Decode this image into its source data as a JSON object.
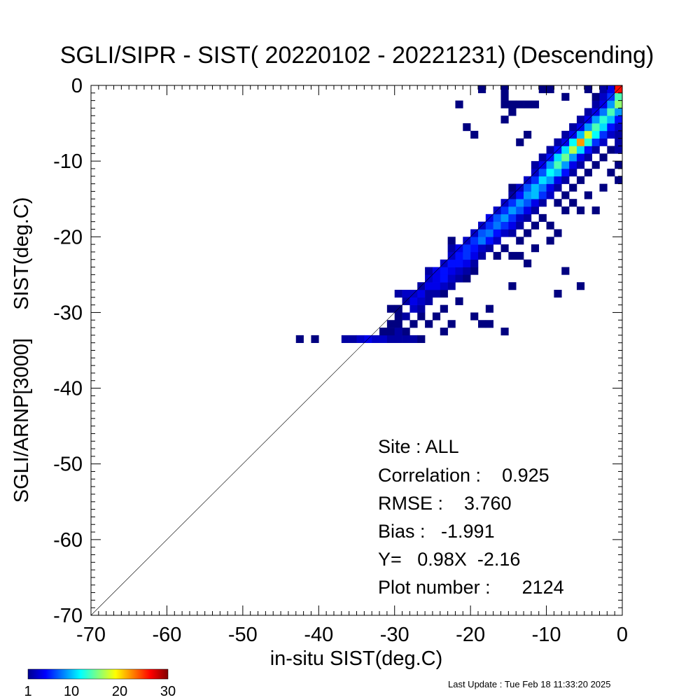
{
  "chart_data": {
    "type": "heatmap",
    "title": "SGLI/SIPR - SIST( 20220102 - 20221231) (Descending)",
    "xlabel": "in-situ SIST(deg.C)",
    "ylabel": "SGLI/ARNP[3000]     SIST(deg.C)",
    "xlim": [
      -70,
      0
    ],
    "ylim": [
      -70,
      0
    ],
    "x_ticks": [
      -70,
      -60,
      -50,
      -40,
      -30,
      -20,
      -10,
      0
    ],
    "y_ticks": [
      0,
      -10,
      -20,
      -30,
      -40,
      -50,
      -60,
      -70
    ],
    "bin_size": 1,
    "reference_line": "1:1",
    "grid": false,
    "colorbar": {
      "min": 1,
      "max": 30,
      "ticks": [
        1,
        10,
        20,
        30
      ],
      "colormap": "jet",
      "placement": "bottom-left"
    },
    "stats": {
      "site": "Site : ALL",
      "correlation": "Correlation :    0.925",
      "rmse": "RMSE :    3.760",
      "bias": "Bias :   -1.991",
      "regression": "Y=   0.98X  -2.16",
      "plot_number": "Plot number :      2124"
    },
    "cells": [
      [
        -43,
        -34,
        1
      ],
      [
        -41,
        -34,
        1
      ],
      [
        -37,
        -34,
        2
      ],
      [
        -36,
        -34,
        2
      ],
      [
        -35,
        -34,
        3
      ],
      [
        -34,
        -34,
        4
      ],
      [
        -33,
        -34,
        3
      ],
      [
        -32,
        -34,
        3
      ],
      [
        -31,
        -34,
        2
      ],
      [
        -30,
        -34,
        2
      ],
      [
        -29,
        -34,
        2
      ],
      [
        -28,
        -34,
        2
      ],
      [
        -27,
        -34,
        1
      ],
      [
        -32,
        -33,
        1
      ],
      [
        -31,
        -33,
        1
      ],
      [
        -30,
        -33,
        2
      ],
      [
        -29,
        -33,
        1
      ],
      [
        -24,
        -33,
        1
      ],
      [
        -16,
        -33,
        1
      ],
      [
        -31,
        -32,
        1
      ],
      [
        -30,
        -32,
        1
      ],
      [
        -28,
        -32,
        1
      ],
      [
        -26,
        -32,
        1
      ],
      [
        -23,
        -32,
        1
      ],
      [
        -19,
        -32,
        1
      ],
      [
        -18,
        -32,
        1
      ],
      [
        -30,
        -31,
        1
      ],
      [
        -29,
        -31,
        2
      ],
      [
        -27,
        -31,
        1
      ],
      [
        -25,
        -31,
        1
      ],
      [
        -20,
        -31,
        1
      ],
      [
        -31,
        -30,
        1
      ],
      [
        -30,
        -30,
        1
      ],
      [
        -28,
        -30,
        3
      ],
      [
        -27,
        -30,
        2
      ],
      [
        -24,
        -30,
        1
      ],
      [
        -18,
        -30,
        1
      ],
      [
        -29,
        -29,
        2
      ],
      [
        -28,
        -29,
        4
      ],
      [
        -27,
        -29,
        3
      ],
      [
        -26,
        -29,
        2
      ],
      [
        -22,
        -29,
        1
      ],
      [
        -30,
        -28,
        2
      ],
      [
        -29,
        -28,
        3
      ],
      [
        -28,
        -28,
        3
      ],
      [
        -27,
        -28,
        4
      ],
      [
        -26,
        -28,
        2
      ],
      [
        -25,
        -28,
        2
      ],
      [
        -24,
        -28,
        1
      ],
      [
        -9,
        -28,
        1
      ],
      [
        -27,
        -27,
        2
      ],
      [
        -26,
        -27,
        4
      ],
      [
        -25,
        -27,
        4
      ],
      [
        -24,
        -27,
        3
      ],
      [
        -23,
        -27,
        2
      ],
      [
        -15,
        -27,
        1
      ],
      [
        -6,
        -27,
        1
      ],
      [
        -26,
        -26,
        3
      ],
      [
        -25,
        -26,
        4
      ],
      [
        -24,
        -26,
        5
      ],
      [
        -23,
        -26,
        3
      ],
      [
        -22,
        -26,
        2
      ],
      [
        -21,
        -26,
        1
      ],
      [
        -26,
        -25,
        2
      ],
      [
        -25,
        -25,
        4
      ],
      [
        -24,
        -25,
        5
      ],
      [
        -23,
        -25,
        4
      ],
      [
        -22,
        -25,
        3
      ],
      [
        -21,
        -25,
        2
      ],
      [
        -20,
        -25,
        1
      ],
      [
        -8,
        -25,
        1
      ],
      [
        -24,
        -24,
        3
      ],
      [
        -23,
        -24,
        5
      ],
      [
        -22,
        -24,
        5
      ],
      [
        -21,
        -24,
        4
      ],
      [
        -20,
        -24,
        2
      ],
      [
        -13,
        -24,
        1
      ],
      [
        -23,
        -23,
        3
      ],
      [
        -22,
        -23,
        5
      ],
      [
        -21,
        -23,
        6
      ],
      [
        -20,
        -23,
        4
      ],
      [
        -19,
        -23,
        2
      ],
      [
        -17,
        -23,
        1
      ],
      [
        -15,
        -23,
        1
      ],
      [
        -14,
        -23,
        1
      ],
      [
        -23,
        -22,
        2
      ],
      [
        -22,
        -22,
        4
      ],
      [
        -21,
        -22,
        6
      ],
      [
        -20,
        -22,
        5
      ],
      [
        -19,
        -22,
        3
      ],
      [
        -18,
        -22,
        2
      ],
      [
        -16,
        -22,
        1
      ],
      [
        -12,
        -22,
        1
      ],
      [
        -23,
        -21,
        1
      ],
      [
        -21,
        -21,
        3
      ],
      [
        -20,
        -21,
        6
      ],
      [
        -19,
        -21,
        8
      ],
      [
        -18,
        -21,
        5
      ],
      [
        -17,
        -21,
        3
      ],
      [
        -14,
        -21,
        1
      ],
      [
        -10,
        -21,
        1
      ],
      [
        -20,
        -20,
        3
      ],
      [
        -19,
        -20,
        7
      ],
      [
        -18,
        -20,
        8
      ],
      [
        -17,
        -20,
        5
      ],
      [
        -16,
        -20,
        3
      ],
      [
        -15,
        -20,
        2
      ],
      [
        -13,
        -20,
        1
      ],
      [
        -9,
        -20,
        1
      ],
      [
        -19,
        -19,
        3
      ],
      [
        -18,
        -19,
        6
      ],
      [
        -17,
        -19,
        8
      ],
      [
        -16,
        -19,
        6
      ],
      [
        -15,
        -19,
        4
      ],
      [
        -14,
        -19,
        2
      ],
      [
        -12,
        -19,
        1
      ],
      [
        -10,
        -19,
        1
      ],
      [
        -18,
        -18,
        4
      ],
      [
        -17,
        -18,
        7
      ],
      [
        -16,
        -18,
        9
      ],
      [
        -15,
        -18,
        6
      ],
      [
        -14,
        -18,
        3
      ],
      [
        -13,
        -18,
        2
      ],
      [
        -11,
        -18,
        1
      ],
      [
        -17,
        -17,
        3
      ],
      [
        -16,
        -17,
        6
      ],
      [
        -15,
        -17,
        9
      ],
      [
        -14,
        -17,
        7
      ],
      [
        -13,
        -17,
        4
      ],
      [
        -12,
        -17,
        2
      ],
      [
        -8,
        -17,
        1
      ],
      [
        -6,
        -17,
        1
      ],
      [
        -4,
        -17,
        1
      ],
      [
        -16,
        -16,
        3
      ],
      [
        -15,
        -16,
        6
      ],
      [
        -14,
        -16,
        9
      ],
      [
        -13,
        -16,
        7
      ],
      [
        -12,
        -16,
        4
      ],
      [
        -11,
        -16,
        2
      ],
      [
        -9,
        -16,
        1
      ],
      [
        -7,
        -16,
        1
      ],
      [
        -15,
        -15,
        2
      ],
      [
        -14,
        -15,
        5
      ],
      [
        -13,
        -15,
        9
      ],
      [
        -12,
        -15,
        10
      ],
      [
        -11,
        -15,
        6
      ],
      [
        -10,
        -15,
        3
      ],
      [
        -8,
        -15,
        1
      ],
      [
        -5,
        -15,
        1
      ],
      [
        -15,
        -14,
        1
      ],
      [
        -14,
        -14,
        3
      ],
      [
        -13,
        -14,
        7
      ],
      [
        -12,
        -14,
        10
      ],
      [
        -11,
        -14,
        8
      ],
      [
        -10,
        -14,
        4
      ],
      [
        -9,
        -14,
        2
      ],
      [
        -7,
        -14,
        1
      ],
      [
        -3,
        -14,
        1
      ],
      [
        -13,
        -13,
        3
      ],
      [
        -12,
        -13,
        6
      ],
      [
        -11,
        -13,
        11
      ],
      [
        -10,
        -13,
        9
      ],
      [
        -9,
        -13,
        4
      ],
      [
        -8,
        -13,
        2
      ],
      [
        -6,
        -13,
        1
      ],
      [
        -1,
        -13,
        1
      ],
      [
        -12,
        -12,
        3
      ],
      [
        -11,
        -12,
        7
      ],
      [
        -10,
        -12,
        12
      ],
      [
        -9,
        -12,
        10
      ],
      [
        -8,
        -12,
        5
      ],
      [
        -7,
        -12,
        2
      ],
      [
        -5,
        -12,
        1
      ],
      [
        -2,
        -12,
        1
      ],
      [
        -12,
        -11,
        2
      ],
      [
        -11,
        -11,
        4
      ],
      [
        -10,
        -11,
        9
      ],
      [
        -9,
        -11,
        14
      ],
      [
        -8,
        -11,
        9
      ],
      [
        -7,
        -11,
        4
      ],
      [
        -6,
        -11,
        2
      ],
      [
        -4,
        -11,
        1
      ],
      [
        -1,
        -11,
        1
      ],
      [
        -11,
        -10,
        2
      ],
      [
        -10,
        -10,
        5
      ],
      [
        -9,
        -10,
        11
      ],
      [
        -8,
        -10,
        15
      ],
      [
        -7,
        -10,
        9
      ],
      [
        -6,
        -10,
        4
      ],
      [
        -5,
        -10,
        2
      ],
      [
        -3,
        -10,
        1
      ],
      [
        -10,
        -9,
        2
      ],
      [
        -9,
        -9,
        5
      ],
      [
        -8,
        -9,
        11
      ],
      [
        -7,
        -9,
        17
      ],
      [
        -6,
        -9,
        11
      ],
      [
        -5,
        -9,
        5
      ],
      [
        -4,
        -9,
        2
      ],
      [
        -2,
        -9,
        1
      ],
      [
        -1,
        -9,
        2
      ],
      [
        -9,
        -8,
        2
      ],
      [
        -8,
        -8,
        4
      ],
      [
        -7,
        -8,
        12
      ],
      [
        -6,
        -8,
        22
      ],
      [
        -5,
        -8,
        13
      ],
      [
        -4,
        -8,
        6
      ],
      [
        -3,
        -8,
        3
      ],
      [
        -1,
        -8,
        2
      ],
      [
        -8,
        -7,
        2
      ],
      [
        -7,
        -7,
        4
      ],
      [
        -6,
        -7,
        10
      ],
      [
        -5,
        -7,
        18
      ],
      [
        -4,
        -7,
        12
      ],
      [
        -3,
        -7,
        6
      ],
      [
        -2,
        -7,
        3
      ],
      [
        -1,
        -7,
        2
      ],
      [
        -7,
        -6,
        2
      ],
      [
        -6,
        -6,
        4
      ],
      [
        -5,
        -6,
        9
      ],
      [
        -4,
        -6,
        14
      ],
      [
        -3,
        -6,
        11
      ],
      [
        -2,
        -6,
        5
      ],
      [
        -1,
        -6,
        3
      ],
      [
        -6,
        -5,
        2
      ],
      [
        -5,
        -5,
        4
      ],
      [
        -4,
        -5,
        9
      ],
      [
        -3,
        -5,
        13
      ],
      [
        -2,
        -5,
        10
      ],
      [
        -1,
        -5,
        5
      ],
      [
        -5,
        -4,
        2
      ],
      [
        -4,
        -4,
        4
      ],
      [
        -3,
        -4,
        8
      ],
      [
        -2,
        -4,
        14
      ],
      [
        -1,
        -4,
        9
      ],
      [
        -4,
        -3,
        2
      ],
      [
        -3,
        -3,
        4
      ],
      [
        -2,
        -3,
        9
      ],
      [
        -1,
        -3,
        16
      ],
      [
        -4,
        -2,
        1
      ],
      [
        -3,
        -2,
        3
      ],
      [
        -2,
        -2,
        6
      ],
      [
        -1,
        -2,
        14
      ],
      [
        -3,
        -1,
        2
      ],
      [
        -2,
        -1,
        4
      ],
      [
        -1,
        -1,
        26
      ],
      [
        -19,
        -1,
        1
      ],
      [
        -16,
        -1,
        1
      ],
      [
        -11,
        -1,
        1
      ],
      [
        -10,
        -1,
        1
      ],
      [
        -5,
        -1,
        1
      ],
      [
        -16,
        -2,
        1
      ],
      [
        -8,
        -2,
        1
      ],
      [
        -22,
        -3,
        1
      ],
      [
        -16,
        -3,
        1
      ],
      [
        -15,
        -3,
        1
      ],
      [
        -14,
        -3,
        1
      ],
      [
        -13,
        -3,
        1
      ],
      [
        -12,
        -3,
        1
      ],
      [
        -15,
        -4,
        1
      ],
      [
        -16,
        -5,
        1
      ],
      [
        -21,
        -6,
        1
      ],
      [
        -13,
        -7,
        1
      ],
      [
        -20,
        -7,
        1
      ],
      [
        -14,
        -8,
        1
      ]
    ]
  },
  "footer": {
    "last_update": "Last Update : Tue Feb 18 11:33:20 2025"
  }
}
